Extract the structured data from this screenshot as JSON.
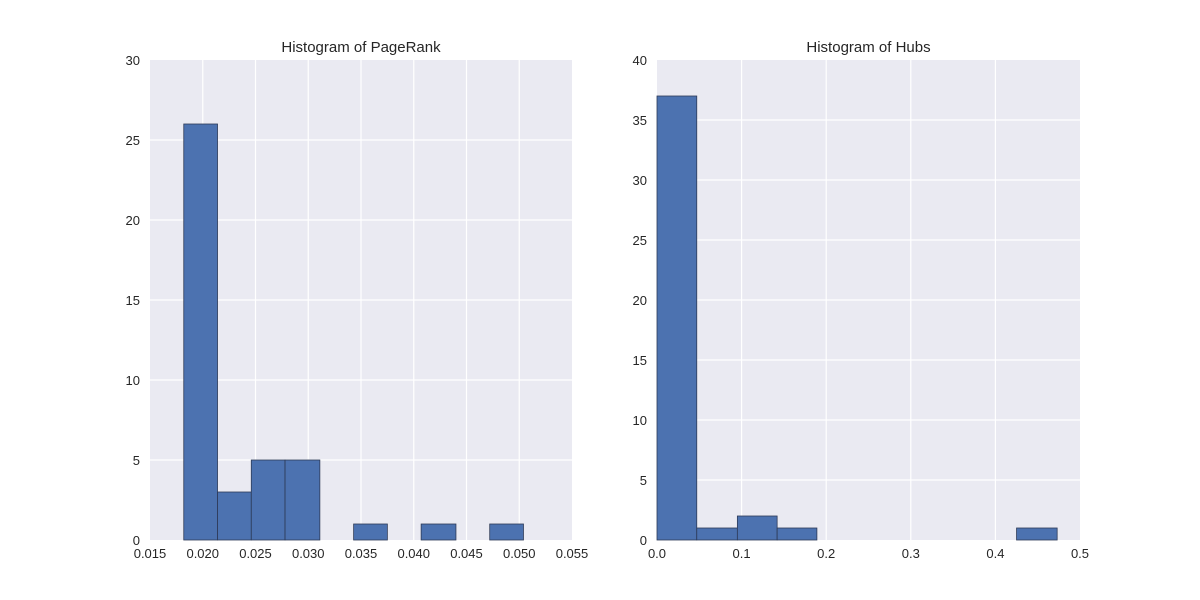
{
  "chart_data": [
    {
      "type": "bar",
      "title": "Histogram of PageRank",
      "xlabel": "",
      "ylabel": "",
      "xlim": [
        0.015,
        0.055
      ],
      "ylim": [
        0,
        30
      ],
      "xticks": [
        0.015,
        0.02,
        0.025,
        0.03,
        0.035,
        0.04,
        0.045,
        0.05,
        0.055
      ],
      "xtick_labels": [
        "0.015",
        "0.020",
        "0.025",
        "0.030",
        "0.035",
        "0.040",
        "0.045",
        "0.050",
        "0.055"
      ],
      "yticks": [
        0,
        5,
        10,
        15,
        20,
        25,
        30
      ],
      "ytick_labels": [
        "0",
        "5",
        "10",
        "15",
        "20",
        "25",
        "30"
      ],
      "grid": true,
      "color": "#4c72b0",
      "bins": [
        {
          "x0": 0.0182,
          "x1": 0.0214,
          "count": 26
        },
        {
          "x0": 0.0214,
          "x1": 0.0246,
          "count": 3
        },
        {
          "x0": 0.0246,
          "x1": 0.0278,
          "count": 5
        },
        {
          "x0": 0.0278,
          "x1": 0.0311,
          "count": 5
        },
        {
          "x0": 0.0311,
          "x1": 0.0343,
          "count": 0
        },
        {
          "x0": 0.0343,
          "x1": 0.0375,
          "count": 1
        },
        {
          "x0": 0.0375,
          "x1": 0.0407,
          "count": 0
        },
        {
          "x0": 0.0407,
          "x1": 0.044,
          "count": 1
        },
        {
          "x0": 0.044,
          "x1": 0.0472,
          "count": 0
        },
        {
          "x0": 0.0472,
          "x1": 0.0504,
          "count": 1
        }
      ]
    },
    {
      "type": "bar",
      "title": "Histogram of Hubs",
      "xlabel": "",
      "ylabel": "",
      "xlim": [
        0.0,
        0.5
      ],
      "ylim": [
        0,
        40
      ],
      "xticks": [
        0.0,
        0.1,
        0.2,
        0.3,
        0.4,
        0.5
      ],
      "xtick_labels": [
        "0.0",
        "0.1",
        "0.2",
        "0.3",
        "0.4",
        "0.5"
      ],
      "yticks": [
        0,
        5,
        10,
        15,
        20,
        25,
        30,
        35,
        40
      ],
      "ytick_labels": [
        "0",
        "5",
        "10",
        "15",
        "20",
        "25",
        "30",
        "35",
        "40"
      ],
      "grid": true,
      "color": "#4c72b0",
      "bins": [
        {
          "x0": 0.0,
          "x1": 0.047,
          "count": 37
        },
        {
          "x0": 0.047,
          "x1": 0.095,
          "count": 1
        },
        {
          "x0": 0.095,
          "x1": 0.142,
          "count": 2
        },
        {
          "x0": 0.142,
          "x1": 0.189,
          "count": 1
        },
        {
          "x0": 0.189,
          "x1": 0.236,
          "count": 0
        },
        {
          "x0": 0.236,
          "x1": 0.284,
          "count": 0
        },
        {
          "x0": 0.284,
          "x1": 0.331,
          "count": 0
        },
        {
          "x0": 0.331,
          "x1": 0.378,
          "count": 0
        },
        {
          "x0": 0.378,
          "x1": 0.425,
          "count": 0
        },
        {
          "x0": 0.425,
          "x1": 0.473,
          "count": 1
        }
      ]
    }
  ]
}
